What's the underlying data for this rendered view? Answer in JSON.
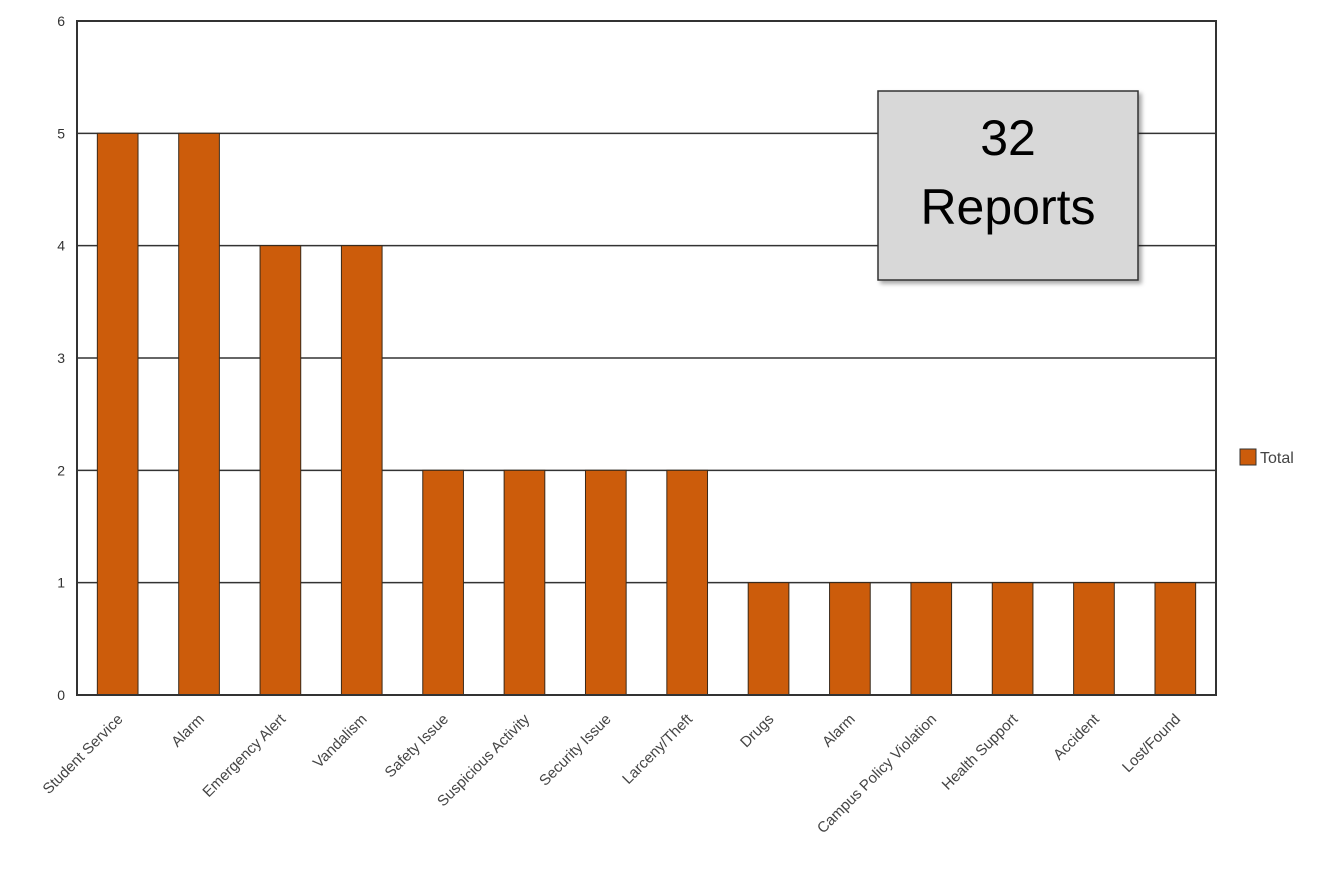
{
  "chart_data": {
    "type": "bar",
    "categories": [
      "Student Service",
      "Alarm",
      "Emergency Alert",
      "Vandalism",
      "Safety Issue",
      "Suspicious Activity",
      "Security Issue",
      "Larceny/Theft",
      "Drugs",
      "Alarm",
      "Campus Policy Violation",
      "Health Support",
      "Accident",
      "Lost/Found"
    ],
    "series": [
      {
        "name": "Total",
        "values": [
          5,
          5,
          4,
          4,
          2,
          2,
          2,
          2,
          1,
          1,
          1,
          1,
          1,
          1
        ]
      }
    ],
    "yticks": [
      0,
      1,
      2,
      3,
      4,
      5,
      6
    ],
    "ylim": [
      0,
      6
    ],
    "grid": true,
    "legend": "right",
    "bar_color": "#CC5C0B",
    "annotation": {
      "line1": "32",
      "line2": "Reports"
    }
  }
}
